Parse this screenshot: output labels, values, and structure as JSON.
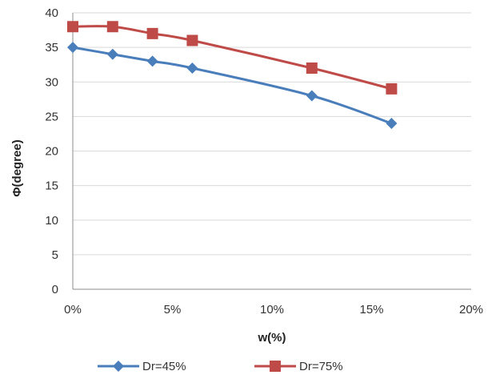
{
  "chart_data": {
    "type": "line",
    "xlabel": "w(%)",
    "ylabel": "Φ(degree)",
    "xlim": [
      0,
      20
    ],
    "ylim": [
      0,
      40
    ],
    "x_ticks": [
      0,
      5,
      10,
      15,
      20
    ],
    "x_tick_labels": [
      "0%",
      "5%",
      "10%",
      "15%",
      "20%"
    ],
    "y_ticks": [
      0,
      5,
      10,
      15,
      20,
      25,
      30,
      35,
      40
    ],
    "y_tick_labels": [
      "0",
      "5",
      "10",
      "15",
      "20",
      "25",
      "30",
      "35",
      "40"
    ],
    "grid": true,
    "legend_position": "bottom",
    "series": [
      {
        "name": "Dr=45%",
        "color": "#4a7ebb",
        "marker": "diamond",
        "x": [
          0,
          2,
          4,
          6,
          12,
          16
        ],
        "y": [
          35,
          34,
          33,
          32,
          28,
          24
        ]
      },
      {
        "name": "Dr=75%",
        "color": "#be4b48",
        "marker": "square",
        "x": [
          0,
          2,
          4,
          6,
          12,
          16
        ],
        "y": [
          38,
          38,
          37,
          36,
          32,
          29
        ]
      }
    ]
  }
}
